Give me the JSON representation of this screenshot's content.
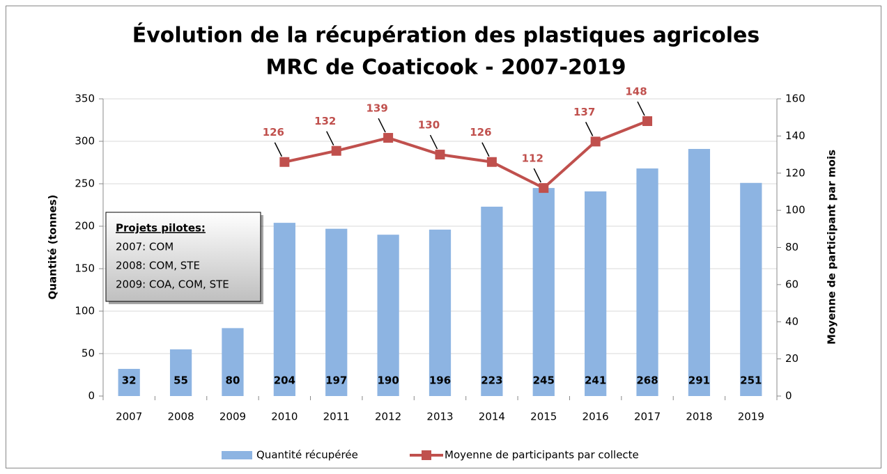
{
  "chart_data": {
    "type": "bar",
    "title": [
      "Évolution de la récupération des plastiques agricoles",
      "MRC de Coaticook - 2007-2019"
    ],
    "y_label": "Quantité (tonnes)",
    "y2_label": "Moyenne de participant par mois",
    "categories": [
      "2007",
      "2008",
      "2009",
      "2010",
      "2011",
      "2012",
      "2013",
      "2014",
      "2015",
      "2016",
      "2017",
      "2018",
      "2019"
    ],
    "series": [
      {
        "name": "Quantité récupérée",
        "type": "bar",
        "color": "#8db4e2",
        "values": [
          32,
          55,
          80,
          204,
          197,
          190,
          196,
          223,
          245,
          241,
          268,
          291,
          251
        ]
      },
      {
        "name": "Moyenne de participants par collecte",
        "type": "line",
        "axis": "y2",
        "color": "#c0504d",
        "values": [
          null,
          null,
          null,
          126,
          132,
          139,
          130,
          126,
          112,
          137,
          148,
          null,
          null
        ]
      }
    ],
    "ylim": [
      0,
      350
    ],
    "yticks": [
      0,
      50,
      100,
      150,
      200,
      250,
      300,
      350
    ],
    "y2lim": [
      0,
      160
    ],
    "y2ticks": [
      0,
      20,
      40,
      60,
      80,
      100,
      120,
      140,
      160
    ],
    "grid": true,
    "legend": "bottom",
    "annotation": {
      "title": "Projets pilotes:",
      "lines": [
        "2007: COM",
        "2008: COM, STE",
        "2009: COA, COM, STE"
      ]
    }
  }
}
